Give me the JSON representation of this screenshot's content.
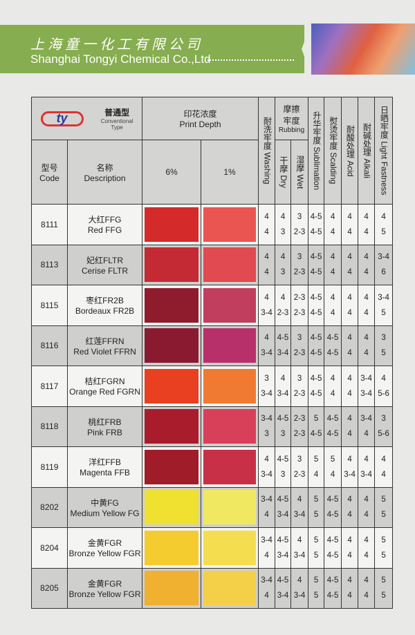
{
  "header": {
    "company_cn": "上海童一化工有限公司",
    "company_en": "Shanghai Tongyi Chemical Co.,Ltd"
  },
  "table": {
    "logo": "ty",
    "type_cn": "普通型",
    "type_en1": "Conventional",
    "type_en2": "Type",
    "depth_cn": "印花浓度",
    "depth_en": "Print Depth",
    "code_cn": "型号",
    "code_en": "Code",
    "desc_cn": "名称",
    "desc_en": "Description",
    "depth_6": "6%",
    "depth_1": "1%",
    "washing": "耐洗牢度 Washing",
    "rubbing_cn": "摩擦牢度",
    "rubbing_en": "Rubbing",
    "dry": "干摩 Dry",
    "wet": "湿摩 Wet",
    "sublimation": "升华牢度 Sublimation",
    "scalding": "熨烫牢度 Scalding",
    "acid": "耐酸处理 Acid",
    "alkali": "耐碱处理 Alkali",
    "light": "日晒牢度 Light Fastness",
    "rows": [
      {
        "code": "8111",
        "cn": "大红FFG",
        "en": "Red FFG",
        "c6": "#d42a2a",
        "c1": "#ea5552",
        "r": [
          [
            "4",
            "4"
          ],
          [
            "4",
            "3"
          ],
          [
            "3",
            "2-3"
          ],
          [
            "4-5",
            "4-5"
          ],
          [
            "4",
            "4"
          ],
          [
            "4",
            "4"
          ],
          [
            "4",
            "4"
          ],
          [
            "4",
            "5"
          ]
        ]
      },
      {
        "code": "8113",
        "cn": "妃红FLTR",
        "en": "Cerise FLTR",
        "c6": "#c42a33",
        "c1": "#e04a50",
        "r": [
          [
            "4",
            "4"
          ],
          [
            "4",
            "3"
          ],
          [
            "3",
            "2-3"
          ],
          [
            "4-5",
            "4-5"
          ],
          [
            "4",
            "4"
          ],
          [
            "4",
            "4"
          ],
          [
            "4",
            "4"
          ],
          [
            "3-4",
            "6"
          ]
        ]
      },
      {
        "code": "8115",
        "cn": "枣红FR2B",
        "en": "Bordeaux FR2B",
        "c6": "#8e1c2c",
        "c1": "#c23e5e",
        "r": [
          [
            "4",
            "3-4"
          ],
          [
            "4",
            "2-3"
          ],
          [
            "2-3",
            "2-3"
          ],
          [
            "4-5",
            "4-5"
          ],
          [
            "4",
            "4"
          ],
          [
            "4",
            "4"
          ],
          [
            "4",
            "4"
          ],
          [
            "3-4",
            "5"
          ]
        ]
      },
      {
        "code": "8116",
        "cn": "红莲FFRN",
        "en": "Red Violet FFRN",
        "c6": "#8a1a30",
        "c1": "#b8306a",
        "r": [
          [
            "4",
            "3-4"
          ],
          [
            "4-5",
            "3-4"
          ],
          [
            "3",
            "2-3"
          ],
          [
            "4-5",
            "4-5"
          ],
          [
            "4-5",
            "4-5"
          ],
          [
            "4",
            "4"
          ],
          [
            "4",
            "4"
          ],
          [
            "3",
            "5"
          ]
        ]
      },
      {
        "code": "8117",
        "cn": "桔红FGRN",
        "en": "Orange Red FGRN",
        "c6": "#e84020",
        "c1": "#f07a32",
        "r": [
          [
            "3",
            "3-4"
          ],
          [
            "4",
            "3-4"
          ],
          [
            "3",
            "2-3"
          ],
          [
            "4-5",
            "4-5"
          ],
          [
            "4",
            "4"
          ],
          [
            "4",
            "4"
          ],
          [
            "3-4",
            "3-4"
          ],
          [
            "4",
            "5-6"
          ]
        ]
      },
      {
        "code": "8118",
        "cn": "桃红FRB",
        "en": "Pink FRB",
        "c6": "#a81c2c",
        "c1": "#d8405a",
        "r": [
          [
            "3-4",
            "3"
          ],
          [
            "4-5",
            "3"
          ],
          [
            "2-3",
            "2-3"
          ],
          [
            "5",
            "4-5"
          ],
          [
            "4-5",
            "4-5"
          ],
          [
            "4",
            "4"
          ],
          [
            "3-4",
            "4"
          ],
          [
            "3",
            "5-6"
          ]
        ]
      },
      {
        "code": "8119",
        "cn": "洋红FFB",
        "en": "Magenta FFB",
        "c6": "#a01c28",
        "c1": "#c83048",
        "r": [
          [
            "4",
            "3-4"
          ],
          [
            "4-5",
            "3"
          ],
          [
            "3",
            "2-3"
          ],
          [
            "5",
            "4"
          ],
          [
            "5",
            "4"
          ],
          [
            "4",
            "3-4"
          ],
          [
            "4",
            "3-4"
          ],
          [
            "4",
            "4"
          ]
        ]
      },
      {
        "code": "8202",
        "cn": "中黄FG",
        "en": "Medium Yellow FG",
        "c6": "#f0e030",
        "c1": "#f0e860",
        "r": [
          [
            "3-4",
            "4"
          ],
          [
            "4-5",
            "3-4"
          ],
          [
            "4",
            "3-4"
          ],
          [
            "5",
            "5"
          ],
          [
            "4-5",
            "4-5"
          ],
          [
            "4",
            "4"
          ],
          [
            "4",
            "4"
          ],
          [
            "5",
            "5"
          ]
        ]
      },
      {
        "code": "8204",
        "cn": "金黄FGR",
        "en": "Bronze Yellow FGR",
        "c6": "#f4cc30",
        "c1": "#f4de50",
        "r": [
          [
            "3-4",
            "4"
          ],
          [
            "4-5",
            "3-4"
          ],
          [
            "4",
            "3-4"
          ],
          [
            "5",
            "5"
          ],
          [
            "4-5",
            "4-5"
          ],
          [
            "4",
            "4"
          ],
          [
            "4",
            "4"
          ],
          [
            "5",
            "5"
          ]
        ]
      },
      {
        "code": "8205",
        "cn": "金黄FGR",
        "en": "Bronze Yellow FGR",
        "c6": "#f0b030",
        "c1": "#f4d048",
        "r": [
          [
            "3-4",
            "4"
          ],
          [
            "4-5",
            "3-4"
          ],
          [
            "4",
            "3-4"
          ],
          [
            "5",
            "5"
          ],
          [
            "4-5",
            "4-5"
          ],
          [
            "4",
            "4"
          ],
          [
            "4",
            "4"
          ],
          [
            "5",
            "5"
          ]
        ]
      }
    ]
  }
}
